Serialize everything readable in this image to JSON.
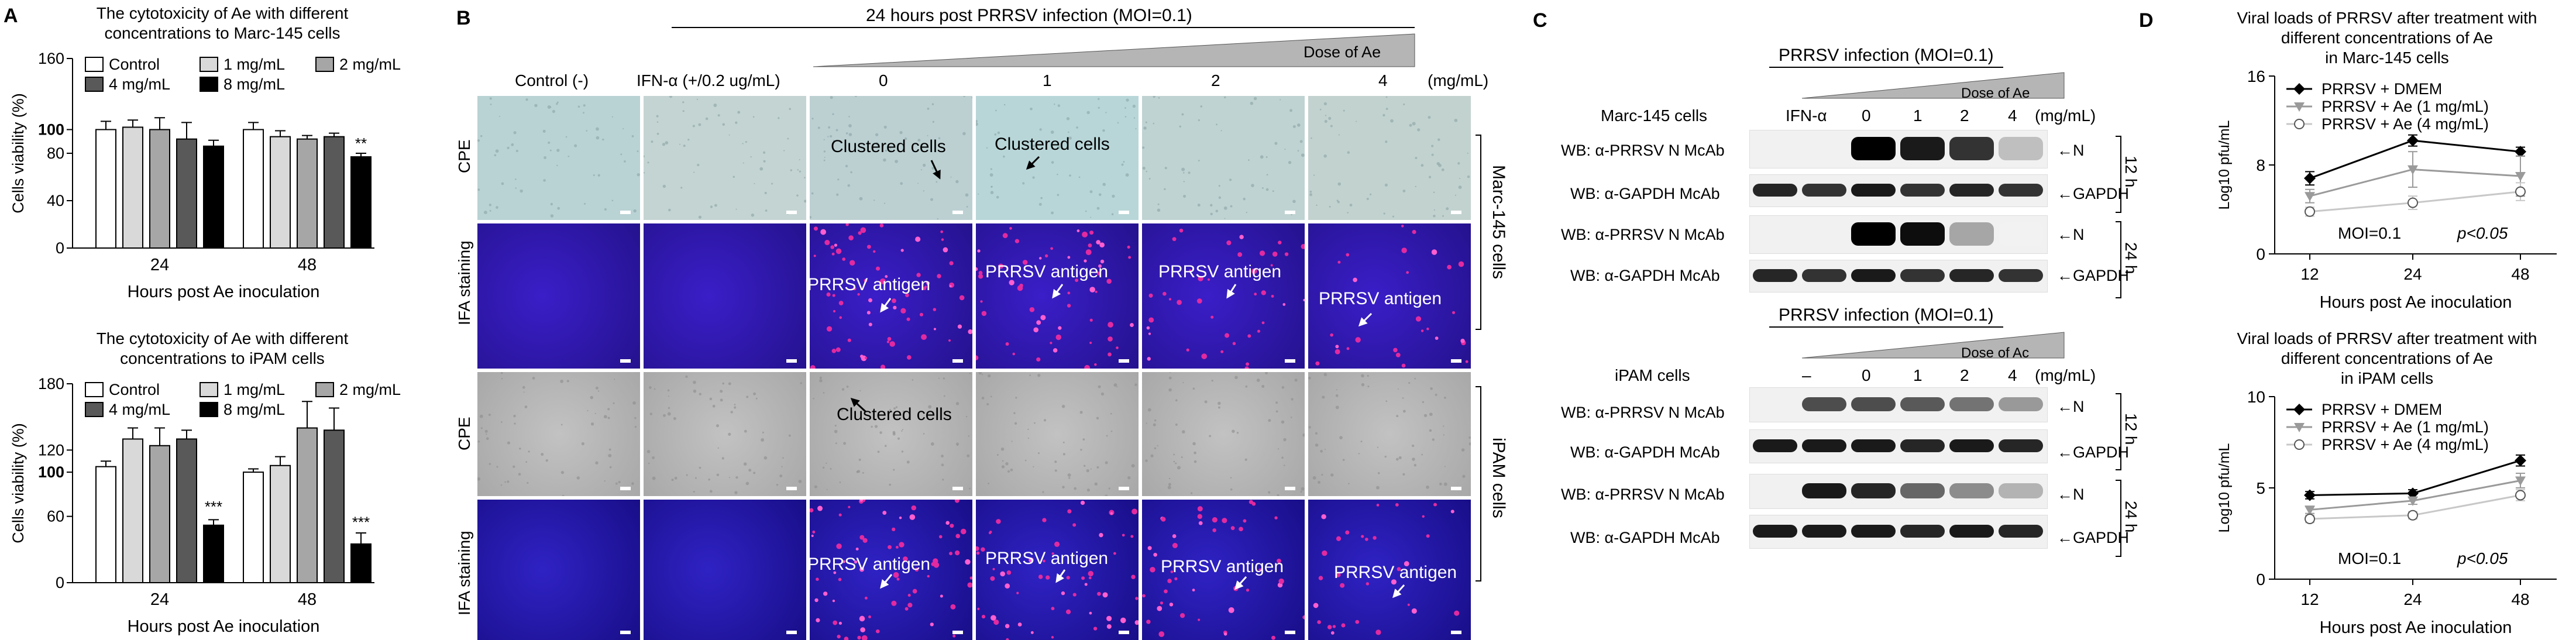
{
  "panels": {
    "A": "A",
    "B": "B",
    "C": "C",
    "D": "D"
  },
  "A_top": {
    "title1": "The cytotoxicity of Ae with different",
    "title2": "concentrations to Marc-145 cells",
    "ylabel": "Cells viability (%)",
    "xlabel": "Hours post Ae inoculation",
    "yticks": [
      "0",
      "40",
      "80",
      "100",
      "160"
    ],
    "legend": [
      "Control",
      "1 mg/mL",
      "2 mg/mL",
      "4 mg/mL",
      "8 mg/mL"
    ],
    "groups": [
      "24",
      "48"
    ],
    "sig": [
      "**"
    ]
  },
  "A_bottom": {
    "title1": "The cytotoxicity of Ae with different",
    "title2": "concentrations to iPAM cells",
    "ylabel": "Cells viability (%)",
    "xlabel": "Hours post Ae inoculation",
    "yticks": [
      "0",
      "60",
      "100",
      "120",
      "180"
    ],
    "legend": [
      "Control",
      "1 mg/mL",
      "2 mg/mL",
      "4 mg/mL",
      "8 mg/mL"
    ],
    "groups": [
      "24",
      "48"
    ],
    "sig": [
      "***",
      "***"
    ]
  },
  "B": {
    "header": "24 hours post PRRSV infection (MOI=0.1)",
    "dose": "Dose of Ae",
    "cols": [
      "Control (-)",
      "IFN-α (+/0.2 ug/mL)",
      "0",
      "1",
      "2",
      "4"
    ],
    "unit": "(mg/mL)",
    "rows": [
      "CPE",
      "IFA staining",
      "CPE",
      "IFA staining"
    ],
    "marc": "Marc-145 cells",
    "ipam": "iPAM cells",
    "ann_clustered": "Clustered cells",
    "ann_antigen": "PRRSV antigen"
  },
  "C": {
    "infection": "PRRSV infection (MOI=0.1)",
    "dose1": "Dose of Ae",
    "dose2": "Dose of Ac",
    "marc": "Marc-145 cells",
    "ipam": "iPAM cells",
    "ifn": "IFN-α",
    "minus": "–",
    "doses": [
      "0",
      "1",
      "2",
      "4"
    ],
    "unit": "(mg/mL)",
    "wb_n": "WB: α-PRRSV N McAb",
    "wb_g": "WB: α-GAPDH McAb",
    "n": "N",
    "gapdh": "GAPDH",
    "h12": "12 h",
    "h24": "24 h"
  },
  "D_top": {
    "title1": "Viral loads of PRRSV after treatment with",
    "title2": "different concentrations of Ae",
    "title3": "in Marc-145 cells",
    "legend": [
      "PRRSV + DMEM",
      "PRRSV + Ae (1 mg/mL)",
      "PRRSV + Ae (4 mg/mL)"
    ],
    "moi": "MOI=0.1",
    "p": "p<0.05",
    "ylabel": "Log10 pfu/mL",
    "xlabel": "Hours post Ae inoculation",
    "yticks": [
      "0",
      "8",
      "16"
    ],
    "xticks": [
      "12",
      "24",
      "48"
    ]
  },
  "D_bottom": {
    "title1": "Viral loads of PRRSV after treatment with",
    "title2": "different concentrations of Ae",
    "title3": "in iPAM cells",
    "legend": [
      "PRRSV + DMEM",
      "PRRSV + Ae (1 mg/mL)",
      "PRRSV + Ae (4 mg/mL)"
    ],
    "moi": "MOI=0.1",
    "p": "p<0.05",
    "ylabel": "Log10 pfu/mL",
    "xlabel": "Hours post Ae inoculation",
    "yticks": [
      "0",
      "5",
      "10"
    ],
    "xticks": [
      "12",
      "24",
      "48"
    ]
  },
  "chart_data": [
    {
      "type": "bar",
      "categories": [
        "24",
        "48"
      ],
      "ylim": [
        0,
        160
      ],
      "series": [
        {
          "name": "Control",
          "values": [
            100,
            100
          ],
          "err": [
            7,
            6
          ]
        },
        {
          "name": "1 mg/mL",
          "values": [
            102,
            94
          ],
          "err": [
            6,
            5
          ]
        },
        {
          "name": "2 mg/mL",
          "values": [
            100,
            92
          ],
          "err": [
            10,
            3
          ]
        },
        {
          "name": "4 mg/mL",
          "values": [
            92,
            94
          ],
          "err": [
            14,
            3
          ]
        },
        {
          "name": "8 mg/mL",
          "values": [
            86,
            77
          ],
          "err": [
            5,
            3
          ]
        }
      ]
    },
    {
      "type": "bar",
      "categories": [
        "24",
        "48"
      ],
      "ylim": [
        0,
        180
      ],
      "series": [
        {
          "name": "Control",
          "values": [
            105,
            100
          ],
          "err": [
            5,
            3
          ]
        },
        {
          "name": "1 mg/mL",
          "values": [
            130,
            106
          ],
          "err": [
            10,
            8
          ]
        },
        {
          "name": "2 mg/mL",
          "values": [
            124,
            140
          ],
          "err": [
            16,
            24
          ]
        },
        {
          "name": "4 mg/mL",
          "values": [
            130,
            138
          ],
          "err": [
            8,
            20
          ]
        },
        {
          "name": "8 mg/mL",
          "values": [
            52,
            35
          ],
          "err": [
            5,
            10
          ]
        }
      ]
    },
    {
      "type": "line",
      "x": [
        "12",
        "24",
        "48"
      ],
      "ylim": [
        0,
        16
      ],
      "series": [
        {
          "name": "PRRSV + DMEM",
          "values": [
            6.8,
            10.2,
            9.2
          ],
          "err": [
            0.6,
            0.5,
            0.4
          ]
        },
        {
          "name": "PRRSV + Ae (1 mg/mL)",
          "values": [
            5.2,
            7.6,
            7.0
          ],
          "err": [
            0.6,
            1.6,
            1.8
          ]
        },
        {
          "name": "PRRSV + Ae (4 mg/mL)",
          "values": [
            3.8,
            4.6,
            5.6
          ],
          "err": [
            0.4,
            0.6,
            0.8
          ]
        }
      ]
    },
    {
      "type": "line",
      "x": [
        "12",
        "24",
        "48"
      ],
      "ylim": [
        0,
        10
      ],
      "series": [
        {
          "name": "PRRSV + DMEM",
          "values": [
            4.6,
            4.7,
            6.5
          ],
          "err": [
            0.2,
            0.2,
            0.3
          ]
        },
        {
          "name": "PRRSV + Ae (1 mg/mL)",
          "values": [
            3.8,
            4.3,
            5.4
          ],
          "err": [
            0.2,
            0.2,
            0.4
          ]
        },
        {
          "name": "PRRSV + Ae (4 mg/mL)",
          "values": [
            3.3,
            3.5,
            4.6
          ],
          "err": [
            0.2,
            0.2,
            0.3
          ]
        }
      ]
    }
  ]
}
